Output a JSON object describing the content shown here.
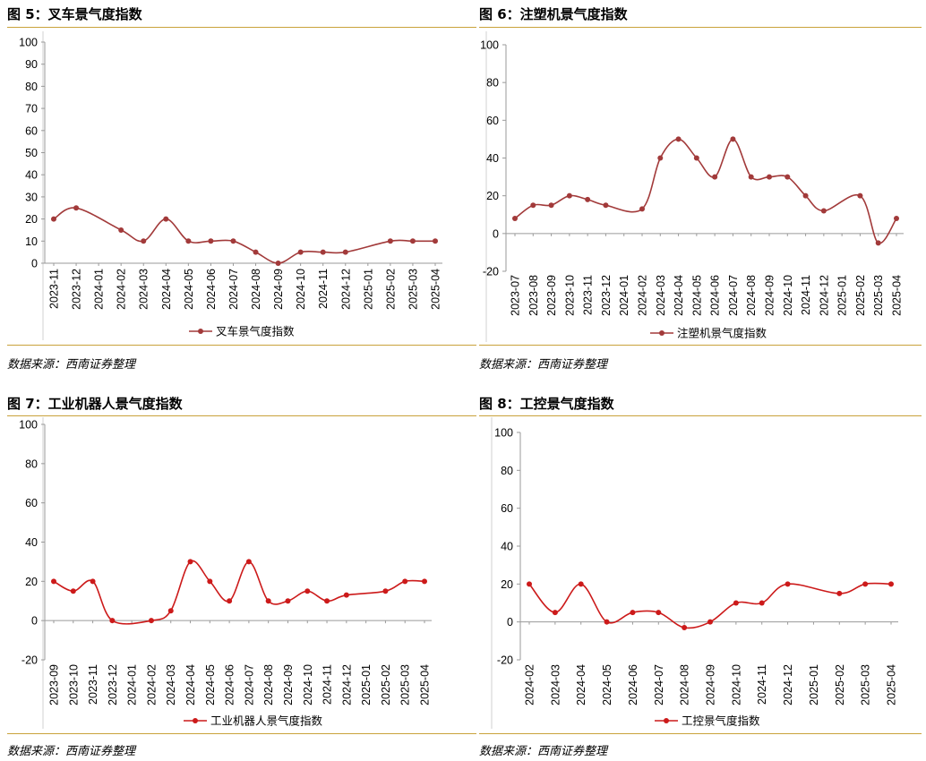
{
  "charts": [
    {
      "title": "图 5：叉车景气度指数",
      "source": "数据来源：西南证券整理",
      "color": "#a23a3a",
      "chart_data": {
        "type": "line",
        "categories": [
          "2023-11",
          "2023-12",
          "2024-01",
          "2024-02",
          "2024-03",
          "2024-04",
          "2024-05",
          "2024-06",
          "2024-07",
          "2024-08",
          "2024-09",
          "2024-10",
          "2024-11",
          "2024-12",
          "2025-01",
          "2025-02",
          "2025-03",
          "2025-04"
        ],
        "series": [
          {
            "name": "叉车景气度指数",
            "values": [
              20,
              25,
              null,
              15,
              10,
              20,
              10,
              10,
              10,
              5,
              0,
              5,
              5,
              5,
              null,
              10,
              10,
              10
            ]
          }
        ],
        "ylim": [
          0,
          100
        ],
        "yticks": [
          0,
          10,
          20,
          30,
          40,
          50,
          60,
          70,
          80,
          90,
          100
        ],
        "title": "",
        "xlabel": "",
        "ylabel": "",
        "grid": false,
        "legend": "bottom"
      }
    },
    {
      "title": "图 6：注塑机景气度指数",
      "source": "数据来源：西南证券整理",
      "color": "#a23a3a",
      "chart_data": {
        "type": "line",
        "categories": [
          "2023-07",
          "2023-08",
          "2023-09",
          "2023-10",
          "2023-11",
          "2023-12",
          "2024-01",
          "2024-02",
          "2024-03",
          "2024-04",
          "2024-05",
          "2024-06",
          "2024-07",
          "2024-08",
          "2024-09",
          "2024-10",
          "2024-11",
          "2024-12",
          "2025-01",
          "2025-02",
          "2025-03",
          "2025-04"
        ],
        "series": [
          {
            "name": "注塑机景气度指数",
            "values": [
              8,
              15,
              15,
              20,
              18,
              15,
              null,
              13,
              40,
              50,
              40,
              30,
              50,
              30,
              30,
              30,
              20,
              12,
              null,
              20,
              -5,
              8
            ]
          }
        ],
        "ylim": [
          -20,
          100
        ],
        "yticks": [
          -20,
          0,
          20,
          40,
          60,
          80,
          100
        ],
        "title": "",
        "xlabel": "",
        "ylabel": "",
        "grid": false,
        "legend": "bottom"
      }
    },
    {
      "title": "图 7：工业机器人景气度指数",
      "source": "数据来源：西南证券整理",
      "color": "#cc1a1a",
      "chart_data": {
        "type": "line",
        "categories": [
          "2023-09",
          "2023-10",
          "2023-11",
          "2023-12",
          "2024-01",
          "2024-02",
          "2024-03",
          "2024-04",
          "2024-05",
          "2024-06",
          "2024-07",
          "2024-08",
          "2024-09",
          "2024-10",
          "2024-11",
          "2024-12",
          "2025-01",
          "2025-02",
          "2025-03",
          "2025-04"
        ],
        "series": [
          {
            "name": "工业机器人景气度指数",
            "values": [
              20,
              15,
              20,
              0,
              null,
              0,
              5,
              30,
              20,
              10,
              30,
              10,
              10,
              15,
              10,
              13,
              null,
              15,
              20,
              20
            ]
          }
        ],
        "ylim": [
          -20,
          100
        ],
        "yticks": [
          -20,
          0,
          20,
          40,
          60,
          80,
          100
        ],
        "title": "",
        "xlabel": "",
        "ylabel": "",
        "grid": false,
        "legend": "bottom"
      }
    },
    {
      "title": "图 8：工控景气度指数",
      "source": "数据来源：西南证券整理",
      "color": "#cc1a1a",
      "chart_data": {
        "type": "line",
        "categories": [
          "2024-02",
          "2024-03",
          "2024-04",
          "2024-05",
          "2024-06",
          "2024-07",
          "2024-08",
          "2024-09",
          "2024-10",
          "2024-11",
          "2024-12",
          "2025-01",
          "2025-02",
          "2025-03",
          "2025-04"
        ],
        "series": [
          {
            "name": "工控景气度指数",
            "values": [
              20,
              5,
              20,
              0,
              5,
              5,
              -3,
              0,
              10,
              10,
              20,
              null,
              15,
              20,
              20
            ]
          }
        ],
        "ylim": [
          -20,
          100
        ],
        "yticks": [
          -20,
          0,
          20,
          40,
          60,
          80,
          100
        ],
        "title": "",
        "xlabel": "",
        "ylabel": "",
        "grid": false,
        "legend": "bottom"
      }
    }
  ]
}
